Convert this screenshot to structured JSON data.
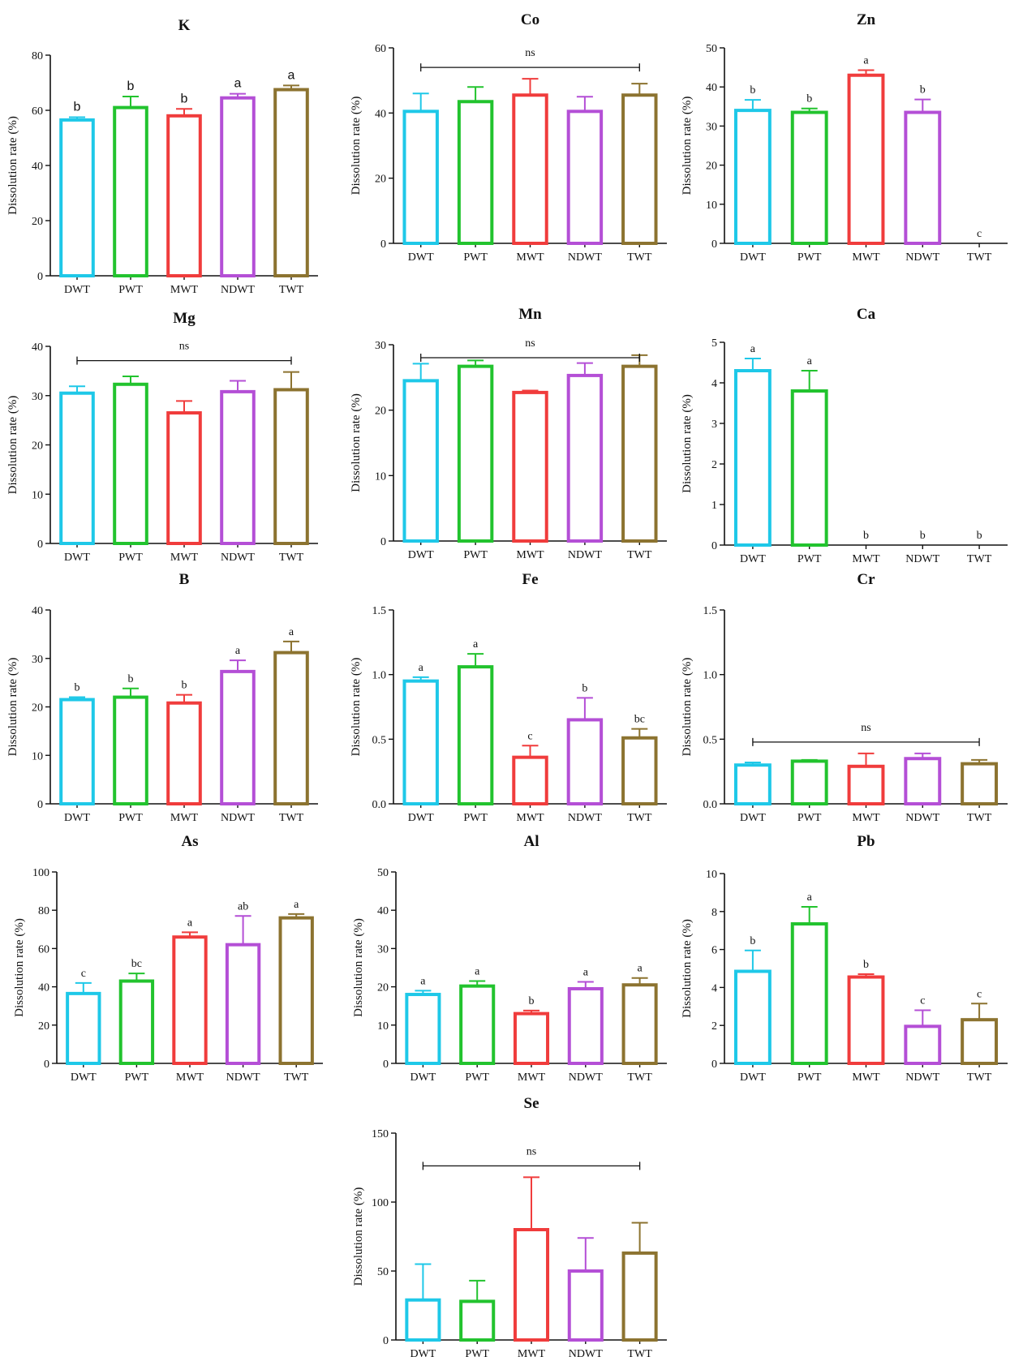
{
  "colors": {
    "DWT": "#1ec8e8",
    "PWT": "#22c32e",
    "MWT": "#f03c3c",
    "NDWT": "#b44fd6",
    "TWT": "#8c7330",
    "axis": "#111111"
  },
  "chart_data": [
    {
      "type": "bar",
      "title": "K",
      "ylabel": "Dissolution rate (%)",
      "categories": [
        "DWT",
        "PWT",
        "MWT",
        "NDWT",
        "TWT"
      ],
      "values": [
        56.5,
        61,
        58,
        64.5,
        67.5
      ],
      "errors": [
        1,
        4,
        2.5,
        1.5,
        1.5
      ],
      "letters": [
        "b",
        "b",
        "b",
        "a",
        "a"
      ],
      "ns": null,
      "ylim": [
        0,
        80
      ],
      "yticks": [
        "0",
        "20",
        "40",
        "60",
        "80"
      ]
    },
    {
      "type": "bar",
      "title": "Co",
      "ylabel": "Dissolution rate (%)",
      "categories": [
        "DWT",
        "PWT",
        "MWT",
        "NDWT",
        "TWT"
      ],
      "values": [
        40.5,
        43.5,
        45.5,
        40.5,
        45.5
      ],
      "errors": [
        5.5,
        4.5,
        5,
        4.5,
        3.5
      ],
      "letters": [
        "",
        "",
        "",
        "",
        ""
      ],
      "ns": "ns",
      "ylim": [
        0,
        60
      ],
      "yticks": [
        "0",
        "20",
        "40",
        "60"
      ]
    },
    {
      "type": "bar",
      "title": "Zn",
      "ylabel": "Dissolution rate (%)",
      "categories": [
        "DWT",
        "PWT",
        "MWT",
        "NDWT",
        "TWT"
      ],
      "values": [
        34,
        33.5,
        43,
        33.5,
        0
      ],
      "errors": [
        2.7,
        1,
        1.3,
        3.3,
        0
      ],
      "letters": [
        "b",
        "b",
        "a",
        "b",
        "c"
      ],
      "ns": null,
      "ylim": [
        0,
        50
      ],
      "yticks": [
        "0",
        "10",
        "20",
        "30",
        "40",
        "50"
      ]
    },
    {
      "type": "bar",
      "title": "Mg",
      "ylabel": "Dissolution rate (%)",
      "categories": [
        "DWT",
        "PWT",
        "MWT",
        "NDWT",
        "TWT"
      ],
      "values": [
        30.5,
        32.3,
        26.5,
        30.8,
        31.2
      ],
      "errors": [
        1.4,
        1.6,
        2.4,
        2.2,
        3.6
      ],
      "letters": [
        "",
        "",
        "",
        "",
        ""
      ],
      "ns": "ns",
      "ylim": [
        0,
        40
      ],
      "yticks": [
        "0",
        "10",
        "20",
        "30",
        "40"
      ]
    },
    {
      "type": "bar",
      "title": "Mn",
      "ylabel": "Dissolution rate (%)",
      "categories": [
        "DWT",
        "PWT",
        "MWT",
        "NDWT",
        "TWT"
      ],
      "values": [
        24.5,
        26.7,
        22.7,
        25.3,
        26.7
      ],
      "errors": [
        2.6,
        0.9,
        0.3,
        1.9,
        1.7
      ],
      "letters": [
        "",
        "",
        "",
        "",
        ""
      ],
      "ns": "ns",
      "ylim": [
        0,
        30
      ],
      "yticks": [
        "0",
        "10",
        "20",
        "30"
      ]
    },
    {
      "type": "bar",
      "title": "Ca",
      "ylabel": "Dissolution rate (%)",
      "categories": [
        "DWT",
        "PWT",
        "MWT",
        "NDWT",
        "TWT"
      ],
      "values": [
        4.3,
        3.8,
        0,
        0,
        0
      ],
      "errors": [
        0.3,
        0.5,
        0,
        0,
        0
      ],
      "letters": [
        "a",
        "a",
        "b",
        "b",
        "b"
      ],
      "ns": null,
      "ylim": [
        0,
        5
      ],
      "yticks": [
        "0",
        "1",
        "2",
        "3",
        "4",
        "5"
      ]
    },
    {
      "type": "bar",
      "title": "B",
      "ylabel": "Dissolution rate (%)",
      "categories": [
        "DWT",
        "PWT",
        "MWT",
        "NDWT",
        "TWT"
      ],
      "values": [
        21.5,
        22,
        20.8,
        27.3,
        31.2
      ],
      "errors": [
        0.5,
        1.8,
        1.7,
        2.3,
        2.3
      ],
      "letters": [
        "b",
        "b",
        "b",
        "a",
        "a"
      ],
      "ns": null,
      "ylim": [
        0,
        40
      ],
      "yticks": [
        "0",
        "10",
        "20",
        "30",
        "40"
      ]
    },
    {
      "type": "bar",
      "title": "Fe",
      "ylabel": "Dissolution rate (%)",
      "categories": [
        "DWT",
        "PWT",
        "MWT",
        "NDWT",
        "TWT"
      ],
      "values": [
        0.95,
        1.06,
        0.36,
        0.65,
        0.51
      ],
      "errors": [
        0.03,
        0.1,
        0.09,
        0.17,
        0.07
      ],
      "letters": [
        "a",
        "a",
        "c",
        "b",
        "bc"
      ],
      "ns": null,
      "ylim": [
        0,
        1.5
      ],
      "yticks": [
        "0.0",
        "0.5",
        "1.0",
        "1.5"
      ]
    },
    {
      "type": "bar",
      "title": "Cr",
      "ylabel": "Dissolution rate (%)",
      "categories": [
        "DWT",
        "PWT",
        "MWT",
        "NDWT",
        "TWT"
      ],
      "values": [
        0.3,
        0.33,
        0.29,
        0.35,
        0.31
      ],
      "errors": [
        0.02,
        0.01,
        0.1,
        0.04,
        0.03
      ],
      "letters": [
        "",
        "",
        "",
        "",
        ""
      ],
      "ns": "ns",
      "ylim": [
        0,
        1.5
      ],
      "yticks": [
        "0.0",
        "0.5",
        "1.0",
        "1.5"
      ]
    },
    {
      "type": "bar",
      "title": "As",
      "ylabel": "Dissolution rate (%)",
      "categories": [
        "DWT",
        "PWT",
        "MWT",
        "NDWT",
        "TWT"
      ],
      "values": [
        36.5,
        43,
        66,
        62,
        76
      ],
      "errors": [
        5.5,
        4,
        2.5,
        15,
        2
      ],
      "letters": [
        "c",
        "bc",
        "a",
        "ab",
        "a"
      ],
      "ns": null,
      "ylim": [
        0,
        100
      ],
      "yticks": [
        "0",
        "20",
        "40",
        "60",
        "80",
        "100"
      ]
    },
    {
      "type": "bar",
      "title": "Al",
      "ylabel": "Dissolution rate (%)",
      "categories": [
        "DWT",
        "PWT",
        "MWT",
        "NDWT",
        "TWT"
      ],
      "values": [
        18,
        20.2,
        13,
        19.5,
        20.5
      ],
      "errors": [
        1,
        1.3,
        0.8,
        1.8,
        1.8
      ],
      "letters": [
        "a",
        "a",
        "b",
        "a",
        "a"
      ],
      "ns": null,
      "ylim": [
        0,
        50
      ],
      "yticks": [
        "0",
        "10",
        "20",
        "30",
        "40",
        "50"
      ]
    },
    {
      "type": "bar",
      "title": "Pb",
      "ylabel": "Dissolution rate (%)",
      "categories": [
        "DWT",
        "PWT",
        "MWT",
        "NDWT",
        "TWT"
      ],
      "values": [
        4.85,
        7.35,
        4.55,
        1.95,
        2.3
      ],
      "errors": [
        1.1,
        0.9,
        0.15,
        0.85,
        0.85
      ],
      "letters": [
        "b",
        "a",
        "b",
        "c",
        "c"
      ],
      "ns": null,
      "ylim": [
        0,
        10
      ],
      "yticks": [
        "0",
        "2",
        "4",
        "6",
        "8",
        "10"
      ]
    },
    {
      "type": "bar",
      "title": "Se",
      "ylabel": "Dissolution rate (%)",
      "categories": [
        "DWT",
        "PWT",
        "MWT",
        "NDWT",
        "TWT"
      ],
      "values": [
        29,
        28,
        80,
        50,
        63
      ],
      "errors": [
        26,
        15,
        38,
        24,
        22
      ],
      "letters": [
        "",
        "",
        "",
        "",
        ""
      ],
      "ns": "ns",
      "ylim": [
        0,
        150
      ],
      "yticks": [
        "0",
        "50",
        "100",
        "150"
      ]
    }
  ]
}
